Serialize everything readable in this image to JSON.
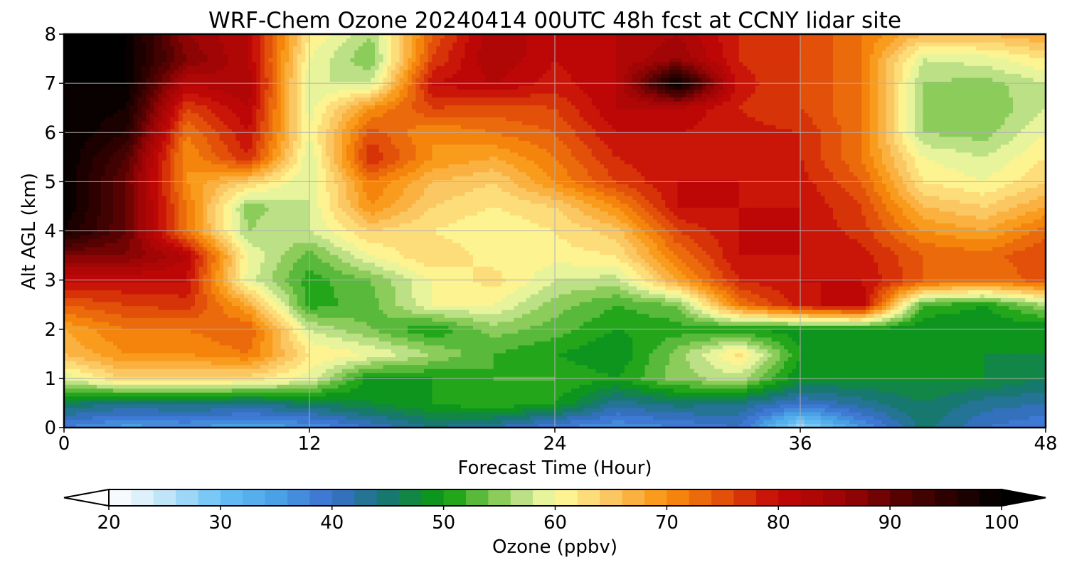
{
  "chart_data": {
    "type": "heatmap",
    "title": "WRF-Chem Ozone  20240414 00UTC 48h fcst at CCNY lidar site",
    "xlabel": "Forecast Time (Hour)",
    "ylabel": "Alt AGL (km)",
    "xlim": [
      0,
      48
    ],
    "ylim": [
      0,
      8
    ],
    "x_ticks": [
      "0",
      "12",
      "24",
      "36",
      "48"
    ],
    "y_ticks": [
      "0",
      "1",
      "2",
      "3",
      "4",
      "5",
      "6",
      "7",
      "8"
    ],
    "grid": true,
    "colorbar": {
      "label": "Ozone  (ppbv)",
      "range": [
        20,
        100
      ],
      "ticks": [
        "20",
        "30",
        "40",
        "50",
        "60",
        "70",
        "80",
        "90",
        "100"
      ],
      "extend": "both",
      "orientation": "horizontal",
      "placement": "bottom"
    },
    "colormap": [
      {
        "v": 20,
        "c": "#ffffff"
      },
      {
        "v": 24,
        "c": "#d2ecfa"
      },
      {
        "v": 30,
        "c": "#67c1f5"
      },
      {
        "v": 35,
        "c": "#4aa1e6"
      },
      {
        "v": 40,
        "c": "#3b6fd0"
      },
      {
        "v": 45,
        "c": "#17786f"
      },
      {
        "v": 50,
        "c": "#0a9c0a"
      },
      {
        "v": 55,
        "c": "#8ccc5a"
      },
      {
        "v": 58,
        "c": "#d2ea9a"
      },
      {
        "v": 60,
        "c": "#fefe9c"
      },
      {
        "v": 65,
        "c": "#fbc762"
      },
      {
        "v": 70,
        "c": "#f8910c"
      },
      {
        "v": 75,
        "c": "#e3500a"
      },
      {
        "v": 80,
        "c": "#c40808"
      },
      {
        "v": 86,
        "c": "#9a0404"
      },
      {
        "v": 92,
        "c": "#4a0202"
      },
      {
        "v": 100,
        "c": "#000000"
      }
    ],
    "x": [
      0,
      3,
      6,
      9,
      12,
      15,
      18,
      21,
      24,
      27,
      30,
      33,
      36,
      39,
      42,
      45,
      48
    ],
    "y": [
      0,
      0.5,
      1,
      1.5,
      2,
      2.5,
      3,
      3.5,
      4,
      4.5,
      5,
      5.5,
      6,
      6.5,
      7,
      7.5,
      8
    ],
    "z": [
      [
        38,
        35,
        36,
        34,
        36,
        40,
        44,
        42,
        38,
        36,
        38,
        40,
        26,
        36,
        45,
        40,
        38
      ],
      [
        46,
        44,
        45,
        44,
        46,
        48,
        50,
        52,
        50,
        43,
        45,
        44,
        40,
        43,
        46,
        43,
        42
      ],
      [
        58,
        64,
        63,
        63,
        59,
        49,
        50,
        52,
        52,
        50,
        55,
        57,
        48,
        48,
        48,
        48,
        46
      ],
      [
        66,
        70,
        70,
        72,
        62,
        60,
        56,
        52,
        50,
        48,
        55,
        63,
        50,
        48,
        48,
        48,
        48
      ],
      [
        68,
        72,
        72,
        74,
        58,
        54,
        50,
        55,
        53,
        50,
        51,
        50,
        49,
        49,
        48,
        48,
        48
      ],
      [
        74,
        76,
        77,
        68,
        51,
        53,
        60,
        60,
        55,
        52,
        54,
        72,
        79,
        82,
        52,
        50,
        56
      ],
      [
        80,
        80,
        80,
        59,
        51,
        54,
        60,
        63,
        58,
        57,
        68,
        78,
        80,
        80,
        74,
        72,
        75
      ],
      [
        88,
        88,
        82,
        60,
        53,
        60,
        64,
        61,
        61,
        62,
        72,
        80,
        80,
        79,
        74,
        73,
        76
      ],
      [
        98,
        90,
        72,
        56,
        58,
        64,
        62,
        60,
        62,
        65,
        76,
        80,
        80,
        77,
        70,
        68,
        73
      ],
      [
        100,
        90,
        72,
        55,
        58,
        70,
        64,
        62,
        64,
        70,
        80,
        80,
        80,
        76,
        66,
        64,
        68
      ],
      [
        100,
        90,
        70,
        64,
        58,
        72,
        66,
        64,
        70,
        76,
        80,
        80,
        79,
        74,
        62,
        60,
        64
      ],
      [
        100,
        92,
        70,
        78,
        58,
        78,
        70,
        68,
        72,
        78,
        80,
        79,
        78,
        72,
        60,
        58,
        62
      ],
      [
        100,
        96,
        72,
        80,
        60,
        75,
        70,
        72,
        74,
        80,
        80,
        79,
        78,
        72,
        56,
        55,
        60
      ],
      [
        100,
        98,
        76,
        82,
        59,
        70,
        76,
        75,
        76,
        82,
        82,
        78,
        76,
        72,
        56,
        54,
        58
      ],
      [
        100,
        100,
        82,
        84,
        58,
        58,
        80,
        82,
        79,
        82,
        100,
        79,
        76,
        72,
        56,
        55,
        58
      ],
      [
        100,
        100,
        88,
        82,
        60,
        54,
        76,
        84,
        80,
        82,
        86,
        78,
        76,
        72,
        58,
        59,
        62
      ],
      [
        100,
        100,
        86,
        82,
        62,
        56,
        74,
        84,
        80,
        82,
        84,
        78,
        76,
        72,
        66,
        66,
        68
      ]
    ]
  }
}
